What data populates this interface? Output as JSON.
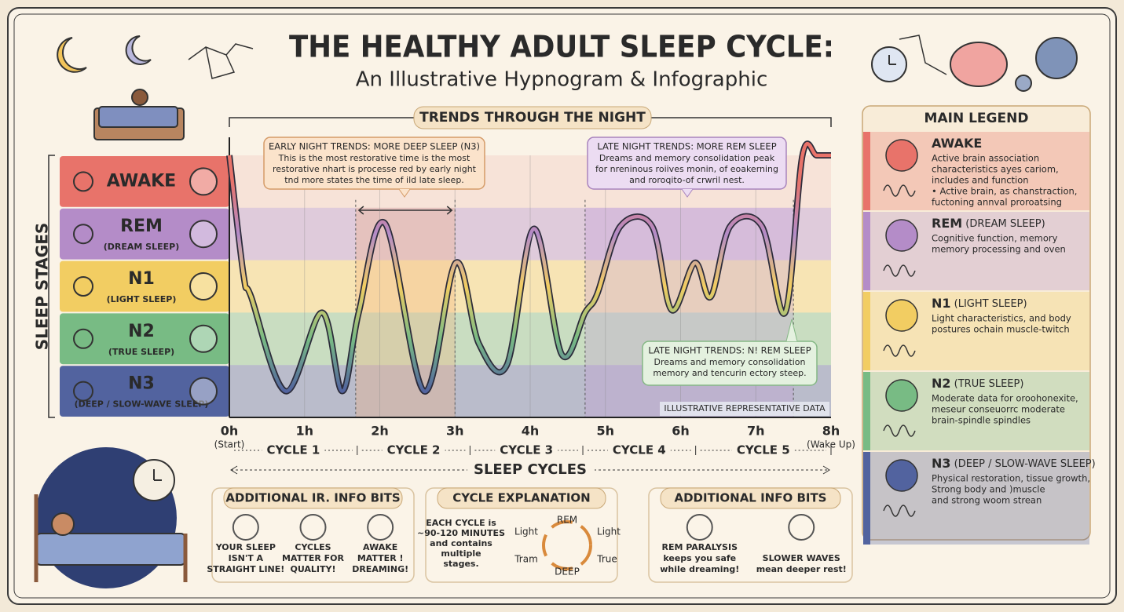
{
  "header": {
    "title": "THE HEALTHY ADULT SLEEP CYCLE:",
    "subtitle": "An Illustrative Hypnogram & Infographic"
  },
  "chart_data": {
    "type": "line",
    "title": "TRENDS THROUGH THE NIGHT",
    "y_label": "SLEEP STAGES",
    "x_label": "SLEEP CYCLES",
    "stages": [
      {
        "name": "AWAKE",
        "color": "#e8736a"
      },
      {
        "name": "REM",
        "sub": "(DREAM SLEEP)",
        "color": "#b48cc8"
      },
      {
        "name": "N1",
        "sub": "(LIGHT SLEEP)",
        "color": "#f2cd62"
      },
      {
        "name": "N2",
        "sub": "(TRUE SLEEP)",
        "color": "#78bb84"
      },
      {
        "name": "N3",
        "sub": "(DEEP / SLOW-WAVE SLEEP)",
        "color": "#52639f"
      }
    ],
    "x": [
      0,
      0.19,
      0.29,
      0.75,
      1.23,
      1.5,
      1.72,
      2.07,
      2.59,
      3.01,
      3.32,
      3.69,
      4.05,
      4.42,
      4.73,
      4.89,
      5.2,
      5.62,
      5.88,
      6.19,
      6.4,
      6.66,
      7.08,
      7.39,
      7.62,
      7.81,
      8
    ],
    "values": [
      4.5,
      2.2,
      1.8,
      0,
      1.5,
      0,
      1.5,
      3.2,
      0,
      2.45,
      0.9,
      0.5,
      3.1,
      0.7,
      1.5,
      1.85,
      3.15,
      3.15,
      1.55,
      2.45,
      1.8,
      3.15,
      3.15,
      1.5,
      4.5,
      4.5,
      4.5
    ],
    "xlim": [
      0,
      8
    ],
    "ylim": [
      -0.5,
      4.5
    ],
    "xticks": [
      {
        "value": 0,
        "label": "0h"
      },
      {
        "value": 1,
        "label": "1h"
      },
      {
        "value": 2,
        "label": "2h"
      },
      {
        "value": 3,
        "label": "3h"
      },
      {
        "value": 4,
        "label": "4h"
      },
      {
        "value": 5,
        "label": "5h"
      },
      {
        "value": 6,
        "label": "6h"
      },
      {
        "value": 7,
        "label": "7h"
      },
      {
        "value": 8,
        "label": "8h"
      }
    ],
    "xtick_notes": [
      {
        "value": 0,
        "label": "(Start)"
      },
      {
        "value": 8,
        "label": "(Wake Up)"
      }
    ],
    "grid": true,
    "cycles": [
      {
        "label": "CYCLE 1",
        "start": 0,
        "end": 1.7
      },
      {
        "label": "CYCLE 2",
        "start": 1.7,
        "end": 3.2
      },
      {
        "label": "CYCLE 3",
        "start": 3.2,
        "end": 4.7
      },
      {
        "label": "CYCLE 4",
        "start": 4.7,
        "end": 6.2
      },
      {
        "label": "CYCLE 5",
        "start": 6.2,
        "end": 8
      }
    ],
    "highlights": [
      {
        "start": 1.68,
        "end": 3.0,
        "color": "#f6b07c"
      },
      {
        "start": 4.73,
        "end": 7.5,
        "color": "#c39ad6"
      }
    ],
    "annotations": [
      {
        "title": "EARLY NIGHT TRENDS: MORE DEEP SLEEP (N3)",
        "text": [
          "This is the most restorative time is the most",
          "restorative nhart is processe red by early night",
          "tnd more states the time of ild late sleep."
        ]
      },
      {
        "title": "LATE NIGHT TRENDS: MORE REM SLEEP",
        "text": [
          "Dreams and memory consolidation peak",
          "for nreninous roiives monin, of eoakerning",
          "and roroqito-of crwril nest."
        ]
      },
      {
        "title": "LATE NIGHT TRENDS: N! REM SLEEP",
        "text": [
          "Dreams and memory consolidation",
          "memory and tencurin ectory steep."
        ]
      }
    ],
    "note": "ILLUSTRATIVE REPRESENTATIVE DATA"
  },
  "legend": {
    "title": "MAIN LEGEND",
    "items": [
      {
        "name": "AWAKE",
        "text": [
          "Active brain association",
          "characteristics ayes carіom,",
          "includes and function",
          "• Active brain, as chanstraction,",
          "fuctoning annval proroatsing"
        ]
      },
      {
        "name": "REM",
        "sub": " (DREAM SLEEP)",
        "text": [
          "Cognitive function, memory",
          "memory processing and oven"
        ]
      },
      {
        "name": "N1",
        "sub": " (LIGHT SLEEP)",
        "text": [
          "Light characteristics, and body",
          "postures ochain muscle-twitch"
        ]
      },
      {
        "name": "N2",
        "sub": " (TRUE SLEEP)",
        "text": [
          "Moderate data for oroohonexite,",
          "meseur conseuorrc moderate",
          "brain-spindle spindles"
        ]
      },
      {
        "name": "N3",
        "sub": " (DEEP / SLOW-WAVE SLEEP)",
        "text": [
          "Physical restoration, tissue growth,",
          "Strong body and )muscle",
          "and strong woom strean"
        ]
      }
    ]
  },
  "panels": [
    {
      "title": "ADDITIONAL IR. INFO BITS",
      "items": [
        [
          "YOUR SLEEP",
          "ISN'T A",
          "STRAIGHT LINE!"
        ],
        [
          "CYCLES",
          "MATTER FOR",
          "QUALITY!"
        ],
        [
          "AWAKE",
          "MATTER !",
          "DREAMING!"
        ]
      ]
    },
    {
      "title": "CYCLE EXPLANATION",
      "text": [
        "EACH CYCLE is",
        "~90-120 MINUTES",
        "and contains",
        "multiple",
        "stages."
      ],
      "cycle_words": [
        "REM",
        "Light",
        "True",
        "DEEP",
        "Tram",
        "Light"
      ]
    },
    {
      "title": "ADDITIONAL INFO BITS",
      "items": [
        [
          "REM PARALYSIS",
          "keeps you safe",
          "while dreaming!"
        ],
        [
          "SLOWER WAVES",
          "mean deeper rest!"
        ]
      ]
    }
  ]
}
